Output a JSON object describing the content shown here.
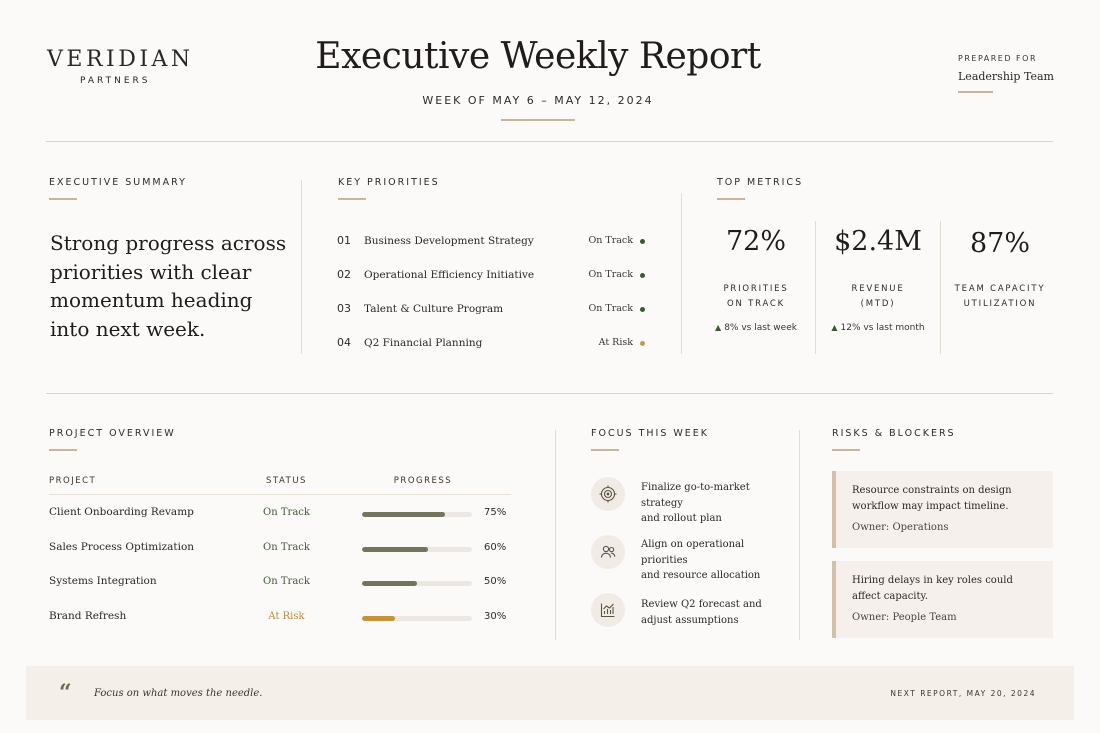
{
  "brand": {
    "name": "VERIDIAN",
    "sub": "PARTNERS"
  },
  "header": {
    "title": "Executive Weekly Report",
    "week": "WEEK OF MAY 6 – MAY 12, 2024",
    "prepared_label": "PREPARED FOR",
    "prepared_value": "Leadership Team"
  },
  "summary": {
    "heading": "EXECUTIVE SUMMARY",
    "text": "Strong progress across priorities with clear momentum heading into next week."
  },
  "priorities": {
    "heading": "KEY PRIORITIES",
    "items": [
      {
        "num": "01",
        "name": "Business Development Strategy",
        "status": "On Track",
        "color": "#3c5a33"
      },
      {
        "num": "02",
        "name": "Operational Efficiency Initiative",
        "status": "On Track",
        "color": "#3c5a33"
      },
      {
        "num": "03",
        "name": "Talent & Culture Program",
        "status": "On Track",
        "color": "#3c5a33"
      },
      {
        "num": "04",
        "name": "Q2 Financial Planning",
        "status": "At Risk",
        "color": "#c19a4e"
      }
    ]
  },
  "metrics": {
    "heading": "TOP METRICS",
    "items": [
      {
        "value": "72%",
        "label_1": "PRIORITIES",
        "label_2": "ON TRACK",
        "delta": "8% vs last week"
      },
      {
        "value": "$2.4M",
        "label_1": "REVENUE",
        "label_2": "(MTD)",
        "delta": "12% vs last month"
      },
      {
        "value": "87%",
        "label_1": "TEAM CAPACITY",
        "label_2": "UTILIZATION",
        "delta": ""
      }
    ]
  },
  "projects": {
    "heading": "PROJECT OVERVIEW",
    "col_project": "PROJECT",
    "col_status": "STATUS",
    "col_progress": "PROGRESS",
    "rows": [
      {
        "name": "Client Onboarding Revamp",
        "status": "On Track",
        "progress": 0.75,
        "pct": "75%",
        "status_color": "#3c5a33",
        "bar_color": "#74735e"
      },
      {
        "name": "Sales Process Optimization",
        "status": "On Track",
        "progress": 0.6,
        "pct": "60%",
        "status_color": "#3c5a33",
        "bar_color": "#74735e"
      },
      {
        "name": "Systems Integration",
        "status": "On Track",
        "progress": 0.5,
        "pct": "50%",
        "status_color": "#3c5a33",
        "bar_color": "#74735e"
      },
      {
        "name": "Brand Refresh",
        "status": "At Risk",
        "progress": 0.3,
        "pct": "30%",
        "status_color": "#b58a3f",
        "bar_color": "#c4923c"
      }
    ]
  },
  "focus": {
    "heading": "FOCUS THIS WEEK",
    "items": [
      {
        "icon": "target-icon",
        "line_1": "Finalize go-to-market strategy",
        "line_2": "and rollout plan"
      },
      {
        "icon": "people-icon",
        "line_1": "Align on operational priorities",
        "line_2": "and resource allocation"
      },
      {
        "icon": "chart-icon",
        "line_1": "Review Q2 forecast and",
        "line_2": "adjust assumptions"
      }
    ]
  },
  "risks": {
    "heading": "RISKS & BLOCKERS",
    "items": [
      {
        "line_1": "Resource constraints on design",
        "line_2": "workflow may impact timeline.",
        "owner": "Owner: Operations"
      },
      {
        "line_1": "Hiring delays in key roles could",
        "line_2": "affect capacity.",
        "owner": "Owner: People Team"
      }
    ]
  },
  "footer": {
    "quote_mark": "“",
    "quote": "Focus on what moves the needle.",
    "next_report": "NEXT REPORT, MAY 20, 2024"
  },
  "colors": {
    "accent": "#cbb59a",
    "on_track": "#3c5a33",
    "at_risk": "#c19a4e",
    "background": "#fcf9f9"
  }
}
